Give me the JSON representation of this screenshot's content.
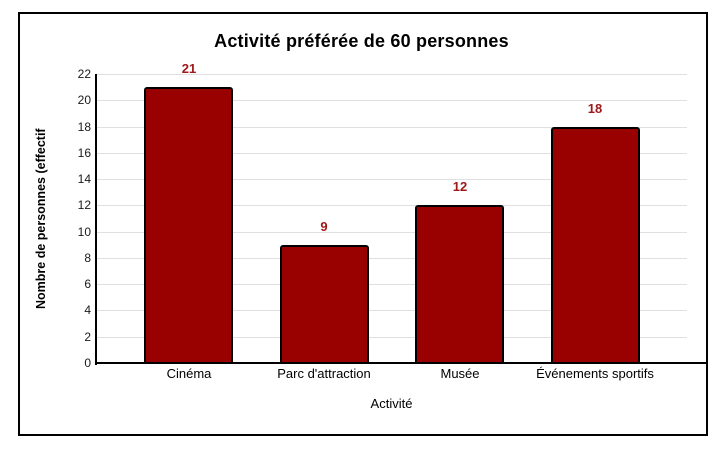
{
  "chart_data": {
    "type": "bar",
    "title": "Activité préférée de 60 personnes",
    "xlabel": "Activité",
    "ylabel": "Nombre de personnes (effectif",
    "categories": [
      "Cinéma",
      "Parc d'attraction",
      "Musée",
      "Événements sportifs"
    ],
    "values": [
      21,
      9,
      12,
      18
    ],
    "data_labels": [
      "21",
      "9",
      "12",
      "18"
    ],
    "ylim": [
      0,
      22
    ],
    "y_ticks": [
      0,
      2,
      4,
      6,
      8,
      10,
      12,
      14,
      16,
      18,
      20,
      22
    ],
    "grid": true,
    "legend": "none",
    "colors": {
      "bar_fill": "#990000",
      "bar_border": "#000000",
      "data_label": "#9e1818",
      "gridline": "#e0e0e0",
      "axis_line": "#000000",
      "tick_label": "#1a1a1a",
      "frame_border": "#000000"
    }
  }
}
